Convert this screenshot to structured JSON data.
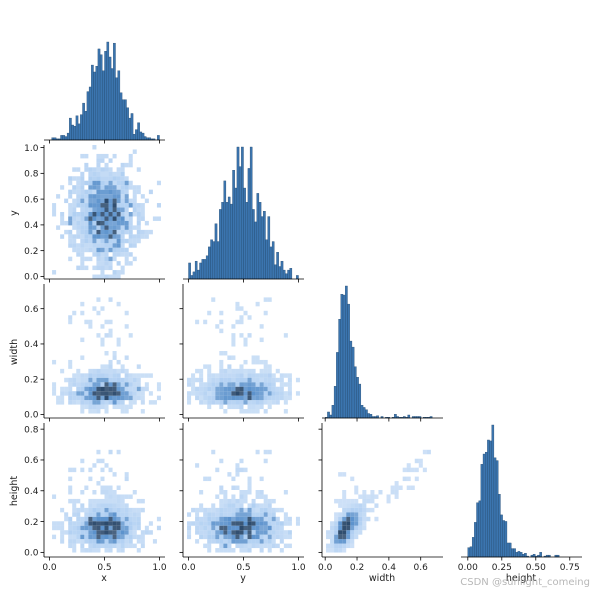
{
  "chart_data": {
    "type": "pairplot",
    "variables": [
      "x",
      "y",
      "width",
      "height"
    ],
    "layout": "corner",
    "diagonal": "histogram",
    "off_diagonal": "2d-histogram",
    "colors": {
      "bar": "#3b75af",
      "bar_edge": "#23486d",
      "cell_dark": "#2c4a6c",
      "cell_mid": "#3f7fc4",
      "cell_light": "#8ab8ec"
    },
    "axes": {
      "x": {
        "label": "x",
        "lim": [
          -0.05,
          1.05
        ],
        "ticks": [
          0.0,
          0.5,
          1.0
        ],
        "tick_labels": [
          "0.0",
          "0.5",
          "1.0"
        ]
      },
      "y": {
        "label": "y",
        "lim": [
          -0.02,
          1.02
        ],
        "ticks": [
          0.0,
          0.2,
          0.4,
          0.6,
          0.8,
          1.0
        ],
        "tick_labels": [
          "0.0",
          "0.2",
          "0.4",
          "0.6",
          "0.8",
          "1.0"
        ],
        "col_lim": [
          -0.05,
          1.05
        ],
        "col_ticks": [
          0.0,
          0.5,
          1.0
        ],
        "col_tick_labels": [
          "0.0",
          "0.5",
          "1.0"
        ]
      },
      "width": {
        "label": "width",
        "lim": [
          -0.02,
          0.74
        ],
        "ticks": [
          0.0,
          0.2,
          0.4,
          0.6
        ],
        "tick_labels": [
          "0.0",
          "0.2",
          "0.4",
          "0.6"
        ]
      },
      "height": {
        "label": "height",
        "lim": [
          -0.03,
          0.84
        ],
        "ticks": [
          0.0,
          0.2,
          0.4,
          0.6,
          0.8
        ],
        "tick_labels": [
          "0.0",
          "0.2",
          "0.4",
          "0.6",
          "0.8"
        ],
        "col_lim": [
          -0.05,
          0.84
        ],
        "col_ticks": [
          0.0,
          0.25,
          0.5,
          0.75
        ],
        "col_tick_labels": [
          "0.00",
          "0.25",
          "0.50",
          "0.75"
        ]
      }
    },
    "diagonal_histograms": {
      "x": {
        "mu": 0.5,
        "sigma": 0.15,
        "bins": 50,
        "range": [
          0.0,
          1.0
        ]
      },
      "y": {
        "mu": 0.48,
        "sigma": 0.18,
        "bins": 50,
        "range": [
          0.0,
          1.0
        ]
      },
      "width": {
        "mu": 0.14,
        "sigma": 0.06,
        "bins": 50,
        "range": [
          0.0,
          0.7
        ]
      },
      "height": {
        "mu": 0.19,
        "sigma": 0.08,
        "bins": 50,
        "range": [
          0.0,
          0.8
        ]
      }
    }
  },
  "watermark": "CSDN @sunlight_comeing"
}
